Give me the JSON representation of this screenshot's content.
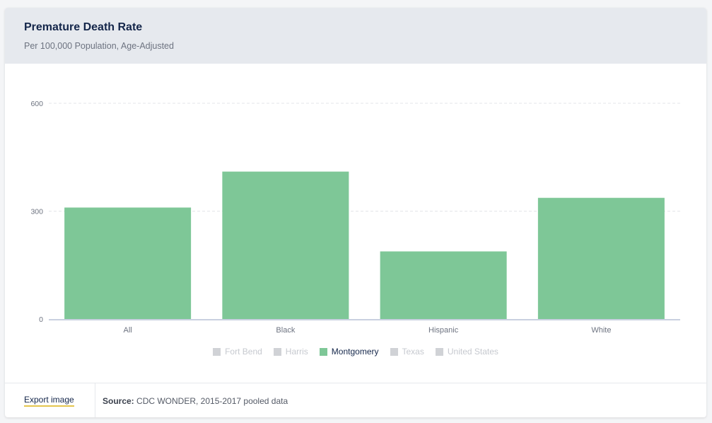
{
  "header": {
    "title": "Premature Death Rate",
    "subtitle": "Per 100,000 Population, Age-Adjusted"
  },
  "chart_data": {
    "type": "bar",
    "title": "Premature Death Rate",
    "subtitle": "Per 100,000 Population, Age-Adjusted",
    "categories": [
      "All",
      "Black",
      "Hispanic",
      "White"
    ],
    "series": [
      {
        "name": "Montgomery",
        "values": [
          310,
          410,
          188,
          337
        ],
        "color": "#7ec797"
      }
    ],
    "yticks": [
      0,
      300,
      600
    ],
    "ylim": [
      0,
      600
    ],
    "grid": true,
    "legend_position": "bottom-center"
  },
  "legend": {
    "items": [
      {
        "label": "Fort Bend",
        "active": false
      },
      {
        "label": "Harris",
        "active": false
      },
      {
        "label": "Montgomery",
        "active": true,
        "color": "#7ec797"
      },
      {
        "label": "Texas",
        "active": false
      },
      {
        "label": "United States",
        "active": false
      }
    ]
  },
  "footer": {
    "export_label": "Export image",
    "source_label": "Source:",
    "source_text": " CDC WONDER, 2015-2017 pooled data"
  }
}
